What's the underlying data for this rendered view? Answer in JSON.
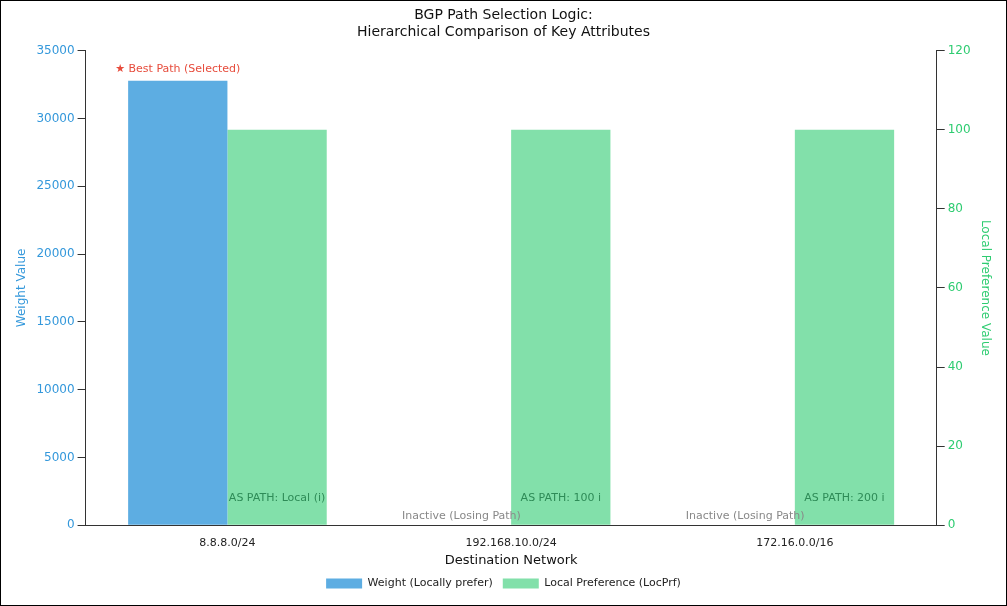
{
  "chart_data": {
    "type": "bar",
    "title": "BGP Path Selection Logic:\nHierarchical Comparison of Key Attributes",
    "xlabel": "Destination Network",
    "ylabel": "Weight Value",
    "y2label": "Local Preference Value",
    "categories": [
      "8.8.8.0/24",
      "192.168.10.0/24",
      "172.16.0.0/16"
    ],
    "series": [
      {
        "name": "Weight (Locally prefer)",
        "color": "#5dade2",
        "values": [
          32768,
          0,
          0
        ]
      },
      {
        "name": "Local Preference (LocPrf)",
        "color": "#82e0aa",
        "values": [
          100,
          100,
          100
        ],
        "axis": "y2"
      }
    ],
    "ylim": [
      0,
      35000
    ],
    "yticks": [
      0,
      5000,
      10000,
      15000,
      20000,
      25000,
      30000,
      35000
    ],
    "y2lim": [
      0,
      120
    ],
    "y2ticks": [
      0,
      20,
      40,
      60,
      80,
      100,
      120
    ],
    "annotations": [
      {
        "text": "★ Best Path (Selected)",
        "x": "8.8.8.0/24",
        "y": 32768
      },
      {
        "text": "AS PATH: Local (i)",
        "x": "8.8.8.0/24",
        "y": 2000
      },
      {
        "text": "Inactive (Losing Path)",
        "x": "192.168.10.0/24",
        "y": 0
      },
      {
        "text": "AS PATH: 100 i",
        "x": "192.168.10.0/24",
        "y": 2000
      },
      {
        "text": "Inactive (Losing Path)",
        "x": "172.16.0.0/16",
        "y": 0
      },
      {
        "text": "AS PATH: 200 i",
        "x": "172.16.0.0/16",
        "y": 2000
      }
    ],
    "grid": false,
    "legend": "bottom"
  }
}
